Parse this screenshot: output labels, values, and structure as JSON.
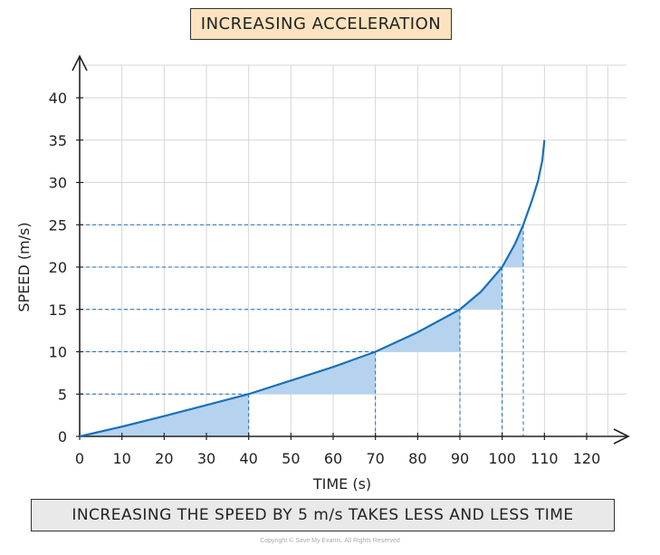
{
  "title": "INCREASING ACCELERATION",
  "caption": "INCREASING THE SPEED BY 5 m/s TAKES LESS AND LESS TIME",
  "copyright": "Copyright © Save My Exams. All Rights Reserved",
  "colors": {
    "curve": "#1a70b8",
    "shade": "#b5d3ee",
    "dash": "#1a70b8",
    "grid": "#d6d6d6",
    "title_bg": "#fbe3bf",
    "caption_bg": "#e9e9e9"
  },
  "chart_data": {
    "type": "line",
    "title": "INCREASING ACCELERATION",
    "xlabel": "TIME (s)",
    "ylabel": "SPEED (m/s)",
    "xlim": [
      0,
      120
    ],
    "ylim": [
      0,
      40
    ],
    "xticks": [
      0,
      10,
      20,
      30,
      40,
      50,
      60,
      70,
      80,
      90,
      100,
      110,
      120
    ],
    "yticks": [
      0,
      5,
      10,
      15,
      20,
      25,
      30,
      35,
      40
    ],
    "grid": true,
    "series": [
      {
        "x": [
          0,
          10,
          20,
          30,
          40,
          50,
          60,
          70,
          80,
          90,
          95,
          100,
          103,
          105,
          107,
          108.5,
          109.5,
          110
        ],
        "y": [
          0,
          1.15,
          2.4,
          3.7,
          5,
          6.6,
          8.2,
          10,
          12.3,
          15,
          17.1,
          20,
          22.7,
          25,
          27.8,
          30.2,
          32.6,
          35
        ]
      }
    ],
    "shaded_intervals": [
      {
        "t_start": 0,
        "t_end": 40,
        "v_base": 0,
        "v_top": 5
      },
      {
        "t_start": 40,
        "t_end": 70,
        "v_base": 5,
        "v_top": 10
      },
      {
        "t_start": 70,
        "t_end": 90,
        "v_base": 10,
        "v_top": 15
      },
      {
        "t_start": 90,
        "t_end": 100,
        "v_base": 15,
        "v_top": 20
      },
      {
        "t_start": 100,
        "t_end": 105,
        "v_base": 20,
        "v_top": 25
      }
    ]
  }
}
